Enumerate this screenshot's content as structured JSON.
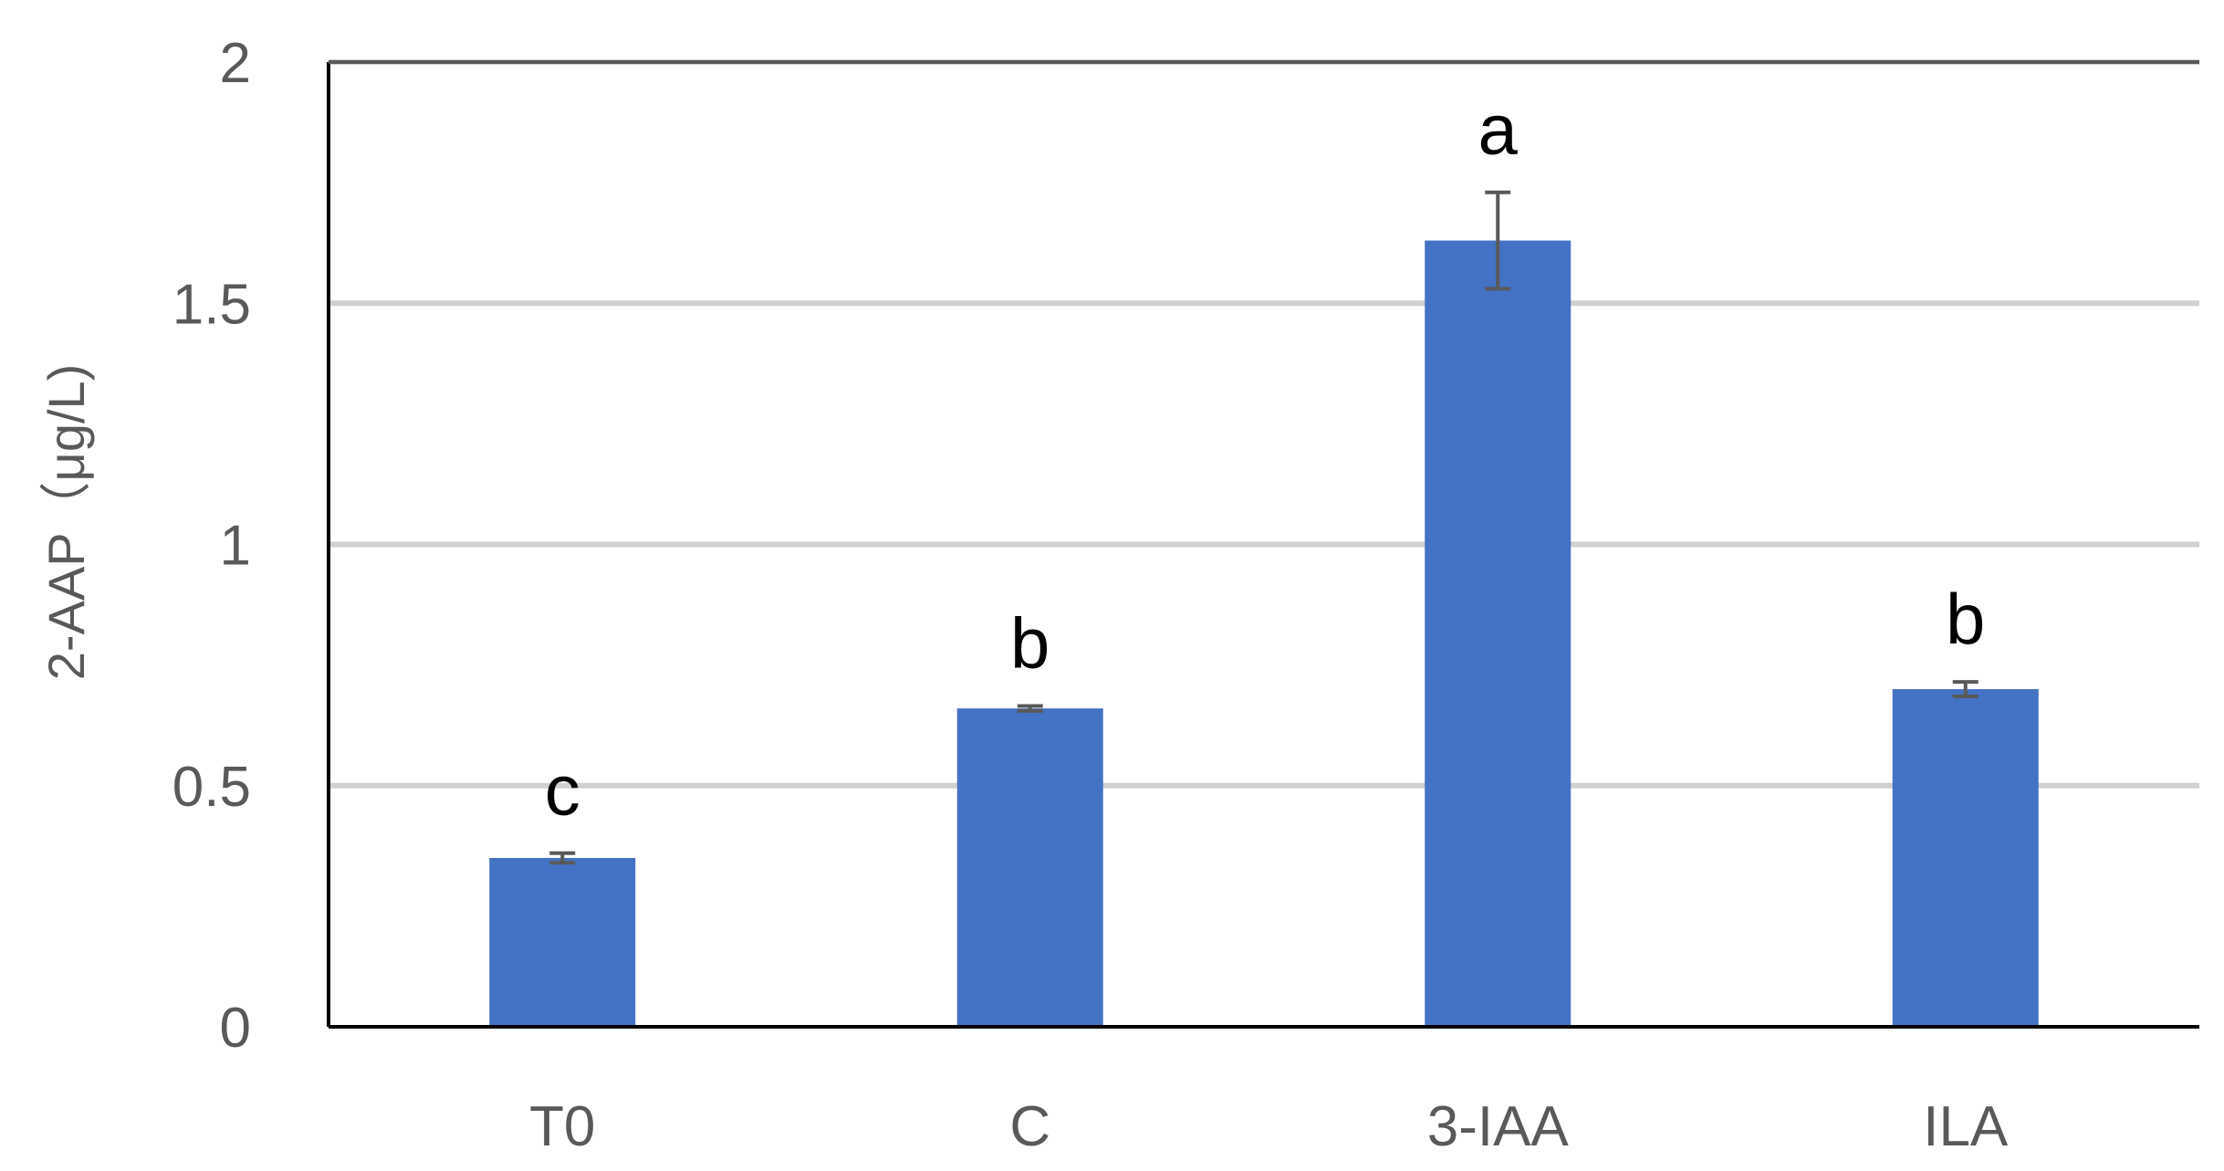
{
  "chart_data": {
    "type": "bar",
    "title": "",
    "xlabel": "",
    "ylabel": "2-AAP（μg/L)",
    "categories": [
      "T0",
      "C",
      "3-IAA",
      "ILA"
    ],
    "values": [
      0.35,
      0.66,
      1.63,
      0.7
    ],
    "errors": [
      0.01,
      0.005,
      0.1,
      0.015
    ],
    "significance_letters": [
      "c",
      "b",
      "a",
      "b"
    ],
    "ylim": [
      0,
      2
    ],
    "yticks": [
      0,
      0.5,
      1,
      1.5,
      2
    ],
    "ytick_labels": [
      "0",
      "0.5",
      "1",
      "1.5",
      "2"
    ],
    "grid": true,
    "legend": "none",
    "bar_color": "#4472C4",
    "error_bar_color": "#595959",
    "grid_color": "#d0d0d0"
  }
}
